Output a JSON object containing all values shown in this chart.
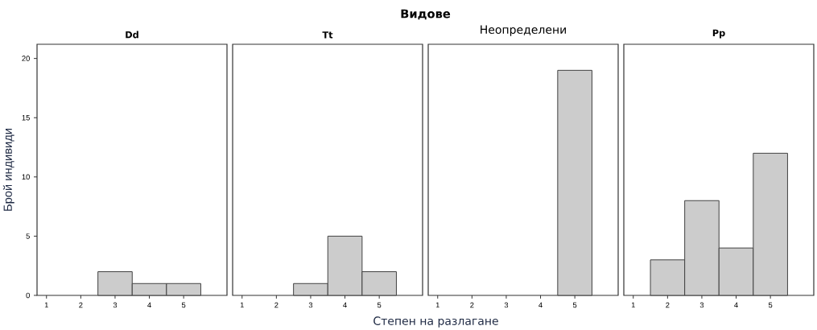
{
  "chart_data": [
    {
      "type": "other",
      "title": "Видове",
      "xlabel": "Степен на разлагане"
    },
    {
      "type": "bar",
      "title": "Dd",
      "ylabel": "Брой индивиди",
      "categories": [
        "1",
        "2",
        "3",
        "4",
        "5"
      ],
      "values": [
        0,
        0,
        2,
        1,
        1
      ],
      "color": "#cccccc",
      "ylim": [
        0,
        21.2
      ],
      "yticks": [
        0,
        5,
        10,
        15,
        20
      ]
    },
    {
      "type": "bar",
      "title": "Tt",
      "categories": [
        "1",
        "2",
        "3",
        "4",
        "5"
      ],
      "values": [
        0,
        0,
        1,
        5,
        2
      ],
      "color": "#cccccc",
      "ylim": [
        0,
        21.2
      ],
      "tick_labels": "x"
    },
    {
      "type": "bar",
      "title": "Неопределени",
      "categories": [
        "1",
        "2",
        "3",
        "4",
        "5"
      ],
      "values": [
        0,
        0,
        0,
        0,
        19
      ],
      "color": "#cccccc",
      "ylim": [
        0,
        21.2
      ],
      "tick_labels": "x"
    },
    {
      "type": "bar",
      "title": "Pp",
      "categories": [
        "1",
        "2",
        "3",
        "4",
        "5"
      ],
      "values": [
        0,
        3,
        8,
        4,
        12
      ],
      "color": "#cccccc",
      "ylim": [
        0,
        21.2
      ],
      "tick_labels": "x"
    }
  ]
}
